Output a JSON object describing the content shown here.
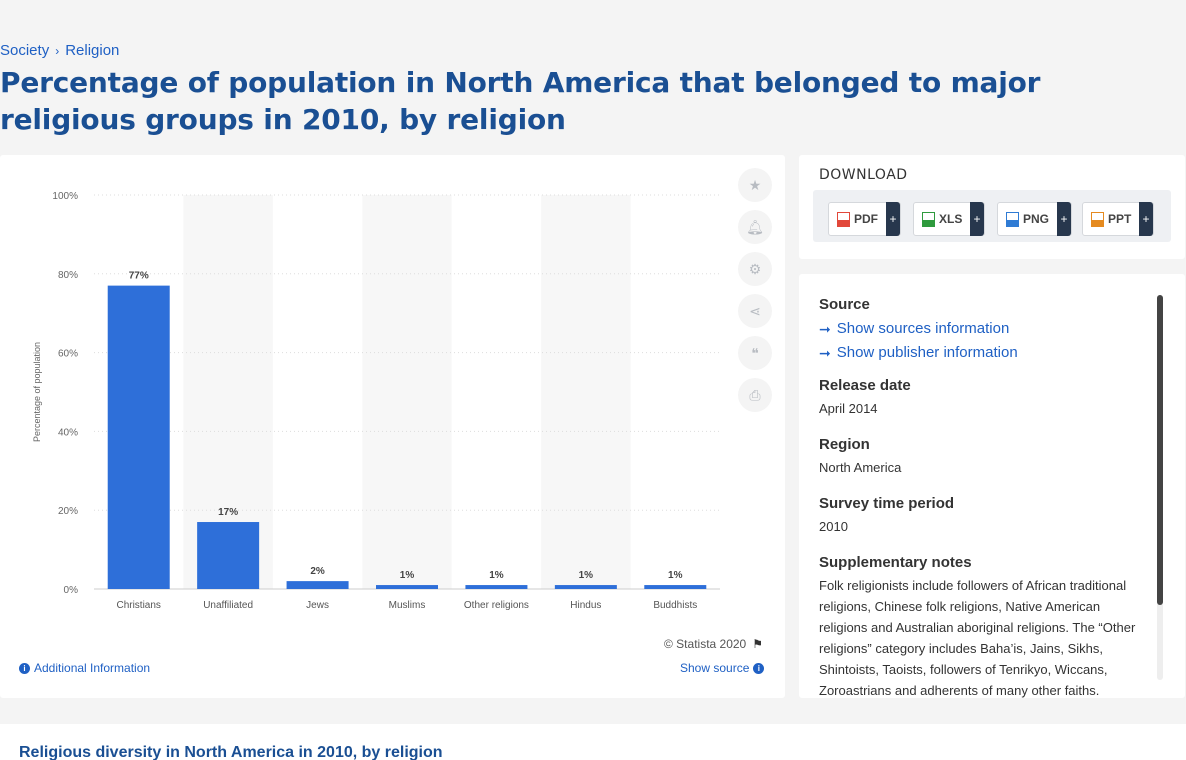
{
  "breadcrumb": {
    "items": [
      "Society",
      "Religion"
    ],
    "separator": "›"
  },
  "page_title": "Percentage of population in North America that belonged to major religious groups in 2010, by religion",
  "toolbar": {
    "icons": [
      "star-icon",
      "bell-icon",
      "gear-icon",
      "share-icon",
      "quote-icon",
      "print-icon"
    ]
  },
  "credit": "© Statista 2020",
  "additional_info": "Additional Information",
  "show_source": "Show source",
  "download": {
    "title": "DOWNLOAD",
    "buttons": [
      {
        "label": "PDF",
        "color": "#e2483a"
      },
      {
        "label": "XLS",
        "color": "#2e9a3d"
      },
      {
        "label": "PNG",
        "color": "#2f7bd4"
      },
      {
        "label": "PPT",
        "color": "#e58a1f"
      }
    ],
    "plus": "+"
  },
  "info": {
    "source_h": "Source",
    "show_sources": "Show sources information",
    "show_publisher": "Show publisher information",
    "release_h": "Release date",
    "release_v": "April 2014",
    "region_h": "Region",
    "region_v": "North America",
    "survey_h": "Survey time period",
    "survey_v": "2010",
    "notes_h": "Supplementary notes",
    "notes_v": "Folk religionists include followers of African traditional religions, Chinese folk religions, Native American religions and Australian aboriginal religions. The “Other religions” category includes Baha’is, Jains, Sikhs, Shintoists, Taoists, followers of Tenrikyo, Wiccans, Zoroastrians and adherents of many other faiths."
  },
  "bottom_title": "Religious diversity in North America in 2010, by religion",
  "chart_data": {
    "type": "bar",
    "categories": [
      "Christians",
      "Unaffiliated",
      "Jews",
      "Muslims",
      "Other religions",
      "Hindus",
      "Buddhists"
    ],
    "values": [
      77,
      17,
      2,
      1,
      1,
      1,
      1
    ],
    "data_labels": [
      "77%",
      "17%",
      "2%",
      "1%",
      "1%",
      "1%",
      "1%"
    ],
    "yticks": [
      "0%",
      "20%",
      "40%",
      "60%",
      "80%",
      "100%"
    ],
    "ylabel": "Percentage of population",
    "xlabel": "",
    "ylim": [
      0,
      100
    ],
    "bar_color": "#2e6fd9",
    "grid": true
  }
}
